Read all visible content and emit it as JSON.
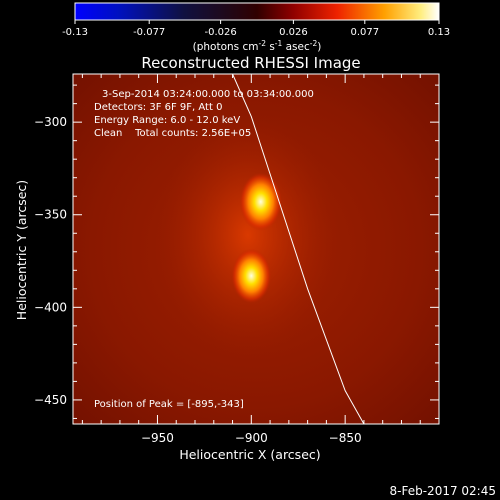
{
  "colorbar": {
    "ticks": [
      "-0.13",
      "-0.077",
      "-0.026",
      "0.026",
      "0.077",
      "0.13"
    ],
    "tick_values": [
      -0.13,
      -0.077,
      -0.026,
      0.026,
      0.077,
      0.13
    ],
    "range": [
      -0.13,
      0.13
    ],
    "units_prefix": "(photons cm",
    "units_exp1": "-2",
    "units_mid": " s",
    "units_exp2": "-1",
    "units_mid2": " asec",
    "units_exp3": "-2",
    "units_suffix": ")"
  },
  "chart_data": {
    "type": "heatmap",
    "title": "Reconstructed RHESSI Image",
    "xlabel": "Heliocentric X (arcsec)",
    "ylabel": "Heliocentric Y (arcsec)",
    "xlim": [
      -995,
      -800
    ],
    "ylim": [
      -463,
      -274
    ],
    "x_ticks": [
      -950,
      -900,
      -850
    ],
    "y_ticks": [
      -300,
      -350,
      -400,
      -450
    ],
    "x_tick_labels": [
      "−950",
      "−900",
      "−850"
    ],
    "y_tick_labels": [
      "−300",
      "−350",
      "−400",
      "−450"
    ],
    "sources": [
      {
        "x": -895,
        "y": -343,
        "peak": 0.13
      },
      {
        "x": -900,
        "y": -383,
        "peak": 0.12
      }
    ],
    "limb_arc": [
      [
        -910,
        -274
      ],
      [
        -900,
        -297
      ],
      [
        -890,
        -328
      ],
      [
        -870,
        -390
      ],
      [
        -850,
        -445
      ],
      [
        -840,
        -463
      ]
    ],
    "info_lines": [
      "3-Sep-2014 03:24:00.000 to 03:34:00.000",
      "Detectors: 3F 6F 9F, Att 0",
      "Energy Range: 6.0 - 12.0 keV",
      "Clean    Total counts: 2.56E+05"
    ],
    "peak_label": "Position of Peak = [-895,-343]",
    "colors": {
      "frame": "#ffffff",
      "background": "#000000"
    }
  },
  "footer": {
    "date": "8-Feb-2017 02:45"
  }
}
